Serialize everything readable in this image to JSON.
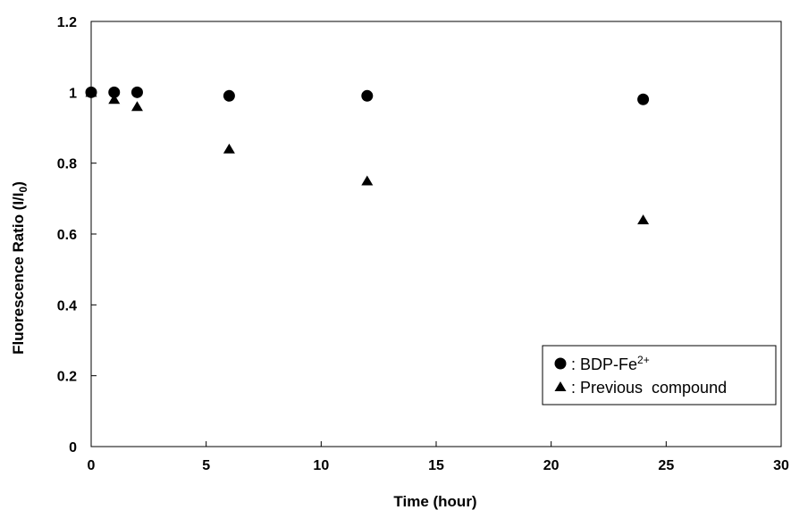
{
  "chart_data": {
    "type": "scatter",
    "xlabel": "Time (hour)",
    "ylabel": {
      "text": "Fluorescence Ratio (I/I",
      "sub": "0",
      "end": ")"
    },
    "xlim": [
      0,
      30
    ],
    "ylim": [
      0,
      1.2
    ],
    "x_ticks": [
      0,
      5,
      10,
      15,
      20,
      25,
      30
    ],
    "y_ticks": [
      "0",
      "0.2",
      "0.4",
      "0.6",
      "0.8",
      "1",
      "1.2"
    ],
    "grid": false,
    "legend_position": "bottom-right",
    "series": [
      {
        "name": {
          "prefix": ": BDP-Fe",
          "sup": "2+"
        },
        "marker": "circle",
        "color": "#000000",
        "x": [
          0,
          1,
          2,
          6,
          12,
          24
        ],
        "y": [
          1.0,
          1.0,
          1.0,
          0.99,
          0.99,
          0.98
        ]
      },
      {
        "name": {
          "prefix": ": Previous  compound",
          "sup": ""
        },
        "marker": "triangle",
        "color": "#000000",
        "x": [
          0,
          1,
          2,
          6,
          12,
          24
        ],
        "y": [
          1.0,
          0.98,
          0.96,
          0.84,
          0.75,
          0.64
        ]
      }
    ]
  }
}
